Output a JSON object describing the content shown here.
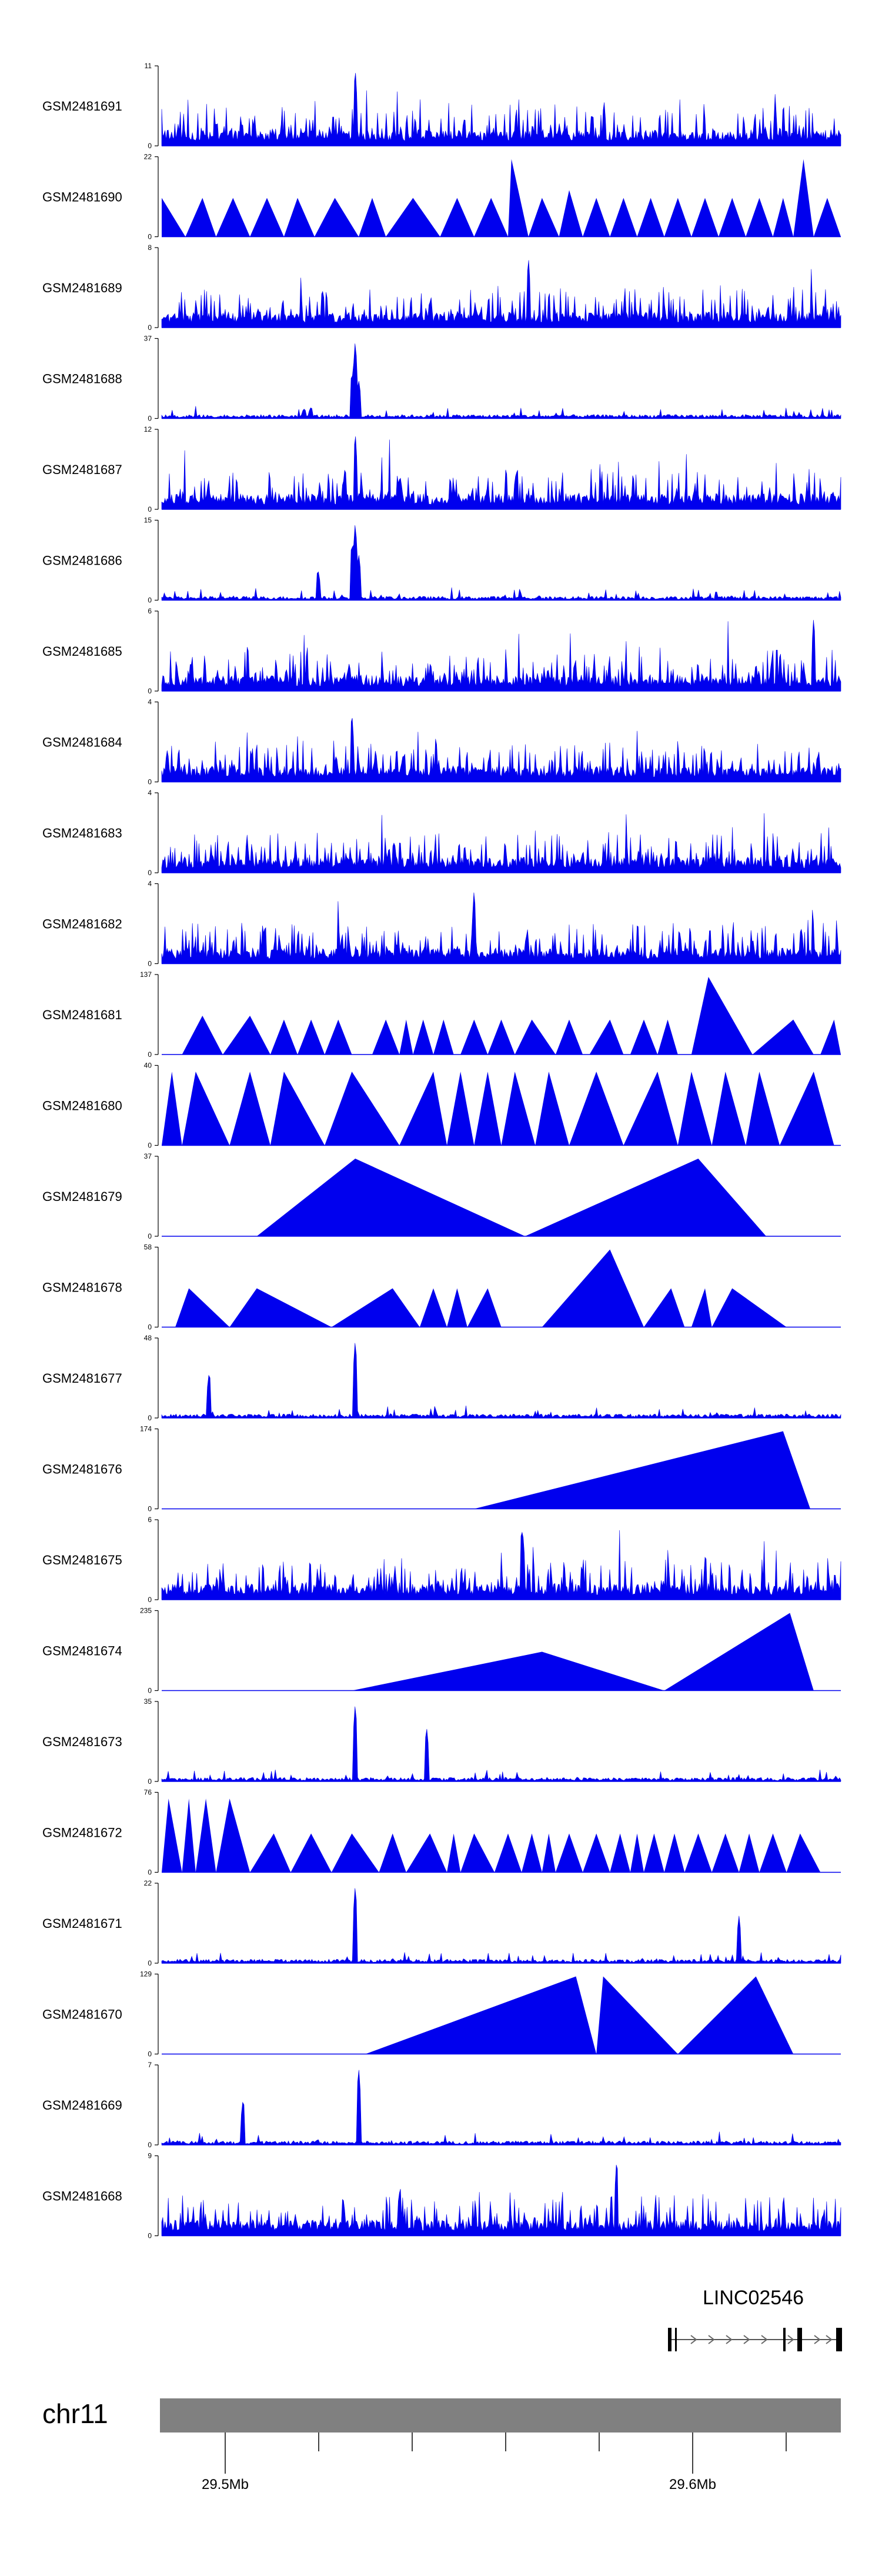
{
  "chart_data": {
    "type": "area",
    "description_title": "",
    "tracks": [
      {
        "name": "GSM2481691",
        "ymax": "11",
        "shape": "dense",
        "seed": 1,
        "spikes": [
          [
            0.285,
            1.0
          ]
        ]
      },
      {
        "name": "GSM2481690",
        "ymax": "22",
        "shape": "tri",
        "peaks": [
          [
            0.0,
            0.035,
            0.0,
            0.5
          ],
          [
            0.035,
            0.08,
            0.06,
            0.5
          ],
          [
            0.08,
            0.13,
            0.105,
            0.5
          ],
          [
            0.13,
            0.18,
            0.155,
            0.5
          ],
          [
            0.18,
            0.225,
            0.2,
            0.5
          ],
          [
            0.225,
            0.29,
            0.255,
            0.5
          ],
          [
            0.29,
            0.33,
            0.31,
            0.5
          ],
          [
            0.33,
            0.41,
            0.37,
            0.5
          ],
          [
            0.41,
            0.46,
            0.435,
            0.5
          ],
          [
            0.46,
            0.51,
            0.485,
            0.5
          ],
          [
            0.51,
            0.54,
            0.515,
            1.0
          ],
          [
            0.54,
            0.585,
            0.56,
            0.5
          ],
          [
            0.585,
            0.62,
            0.6,
            0.6
          ],
          [
            0.62,
            0.66,
            0.64,
            0.5
          ],
          [
            0.66,
            0.7,
            0.68,
            0.5
          ],
          [
            0.7,
            0.74,
            0.72,
            0.5
          ],
          [
            0.74,
            0.78,
            0.76,
            0.5
          ],
          [
            0.78,
            0.82,
            0.8,
            0.5
          ],
          [
            0.82,
            0.86,
            0.84,
            0.5
          ],
          [
            0.86,
            0.9,
            0.88,
            0.5
          ],
          [
            0.9,
            0.93,
            0.915,
            0.5
          ],
          [
            0.93,
            0.96,
            0.945,
            1.0
          ],
          [
            0.96,
            1.0,
            0.98,
            0.5
          ]
        ]
      },
      {
        "name": "GSM2481689",
        "ymax": "8",
        "shape": "dense",
        "seed": 3,
        "spikes": [
          [
            0.54,
            0.9
          ]
        ]
      },
      {
        "name": "GSM2481688",
        "ymax": "37",
        "shape": "sparse",
        "seed": 4,
        "spikes": [
          [
            0.285,
            1.0
          ],
          [
            0.28,
            0.6
          ],
          [
            0.29,
            0.5
          ],
          [
            0.22,
            0.15
          ]
        ]
      },
      {
        "name": "GSM2481687",
        "ymax": "12",
        "shape": "dense",
        "seed": 5,
        "spikes": [
          [
            0.285,
            1.0
          ],
          [
            0.27,
            0.55
          ]
        ]
      },
      {
        "name": "GSM2481686",
        "ymax": "15",
        "shape": "sparse",
        "seed": 6,
        "spikes": [
          [
            0.285,
            1.0
          ],
          [
            0.28,
            0.75
          ],
          [
            0.29,
            0.6
          ],
          [
            0.23,
            0.4
          ]
        ]
      },
      {
        "name": "GSM2481685",
        "ymax": "6",
        "shape": "dense",
        "seed": 7,
        "spikes": [
          [
            0.96,
            0.95
          ]
        ]
      },
      {
        "name": "GSM2481684",
        "ymax": "4",
        "shape": "dense",
        "seed": 8,
        "spikes": [
          [
            0.28,
            0.9
          ]
        ]
      },
      {
        "name": "GSM2481683",
        "ymax": "4",
        "shape": "dense",
        "seed": 9,
        "spikes": []
      },
      {
        "name": "GSM2481682",
        "ymax": "4",
        "shape": "dense",
        "seed": 10,
        "spikes": [
          [
            0.46,
            0.95
          ]
        ]
      },
      {
        "name": "GSM2481681",
        "ymax": "137",
        "shape": "tri",
        "peaks": [
          [
            0.03,
            0.09,
            0.06,
            0.5
          ],
          [
            0.09,
            0.16,
            0.13,
            0.5
          ],
          [
            0.16,
            0.2,
            0.18,
            0.45
          ],
          [
            0.2,
            0.24,
            0.22,
            0.45
          ],
          [
            0.24,
            0.28,
            0.26,
            0.45
          ],
          [
            0.31,
            0.35,
            0.33,
            0.45
          ],
          [
            0.35,
            0.37,
            0.36,
            0.45
          ],
          [
            0.37,
            0.4,
            0.385,
            0.45
          ],
          [
            0.4,
            0.43,
            0.415,
            0.45
          ],
          [
            0.44,
            0.48,
            0.46,
            0.45
          ],
          [
            0.48,
            0.52,
            0.5,
            0.45
          ],
          [
            0.52,
            0.58,
            0.545,
            0.45
          ],
          [
            0.58,
            0.62,
            0.6,
            0.45
          ],
          [
            0.63,
            0.68,
            0.66,
            0.45
          ],
          [
            0.69,
            0.73,
            0.71,
            0.45
          ],
          [
            0.73,
            0.76,
            0.745,
            0.45
          ],
          [
            0.78,
            0.87,
            0.805,
            1.0
          ],
          [
            0.87,
            0.96,
            0.93,
            0.45
          ],
          [
            0.97,
            1.0,
            0.99,
            0.45
          ]
        ]
      },
      {
        "name": "GSM2481680",
        "ymax": "40",
        "shape": "tri",
        "peaks": [
          [
            0.0,
            0.03,
            0.015,
            0.95
          ],
          [
            0.03,
            0.1,
            0.05,
            0.95
          ],
          [
            0.1,
            0.16,
            0.13,
            0.95
          ],
          [
            0.16,
            0.24,
            0.18,
            0.95
          ],
          [
            0.24,
            0.35,
            0.28,
            0.95
          ],
          [
            0.35,
            0.42,
            0.4,
            0.95
          ],
          [
            0.42,
            0.46,
            0.44,
            0.95
          ],
          [
            0.46,
            0.5,
            0.48,
            0.95
          ],
          [
            0.5,
            0.55,
            0.52,
            0.95
          ],
          [
            0.55,
            0.6,
            0.57,
            0.95
          ],
          [
            0.6,
            0.68,
            0.64,
            0.95
          ],
          [
            0.68,
            0.76,
            0.73,
            0.95
          ],
          [
            0.76,
            0.81,
            0.78,
            0.95
          ],
          [
            0.81,
            0.86,
            0.83,
            0.95
          ],
          [
            0.86,
            0.91,
            0.88,
            0.95
          ],
          [
            0.91,
            0.99,
            0.96,
            0.95
          ]
        ]
      },
      {
        "name": "GSM2481679",
        "ymax": "37",
        "shape": "tri",
        "peaks": [
          [
            0.14,
            0.535,
            0.285,
            1.0
          ],
          [
            0.535,
            0.89,
            0.79,
            1.0
          ]
        ]
      },
      {
        "name": "GSM2481678",
        "ymax": "58",
        "shape": "tri",
        "peaks": [
          [
            0.02,
            0.1,
            0.04,
            0.5
          ],
          [
            0.1,
            0.25,
            0.14,
            0.5
          ],
          [
            0.25,
            0.38,
            0.34,
            0.5
          ],
          [
            0.38,
            0.42,
            0.4,
            0.5
          ],
          [
            0.42,
            0.45,
            0.435,
            0.5
          ],
          [
            0.45,
            0.5,
            0.48,
            0.5
          ],
          [
            0.56,
            0.71,
            0.66,
            1.0
          ],
          [
            0.71,
            0.77,
            0.75,
            0.5
          ],
          [
            0.78,
            0.81,
            0.8,
            0.5
          ],
          [
            0.81,
            0.92,
            0.84,
            0.5
          ]
        ]
      },
      {
        "name": "GSM2481677",
        "ymax": "48",
        "shape": "sparse",
        "seed": 15,
        "spikes": [
          [
            0.07,
            0.6
          ],
          [
            0.285,
            1.0
          ]
        ]
      },
      {
        "name": "GSM2481676",
        "ymax": "174",
        "shape": "tri",
        "peaks": [
          [
            0.46,
            0.955,
            0.915,
            1.0
          ]
        ]
      },
      {
        "name": "GSM2481675",
        "ymax": "6",
        "shape": "dense",
        "seed": 17,
        "spikes": [
          [
            0.53,
            0.95
          ]
        ]
      },
      {
        "name": "GSM2481674",
        "ymax": "235",
        "shape": "tri",
        "peaks": [
          [
            0.28,
            0.74,
            0.56,
            0.5
          ],
          [
            0.74,
            0.96,
            0.925,
            1.0
          ]
        ]
      },
      {
        "name": "GSM2481673",
        "ymax": "35",
        "shape": "sparse",
        "seed": 19,
        "spikes": [
          [
            0.285,
            1.0
          ],
          [
            0.39,
            0.7
          ]
        ]
      },
      {
        "name": "GSM2481672",
        "ymax": "76",
        "shape": "tri",
        "peaks": [
          [
            0.0,
            0.03,
            0.01,
            0.95
          ],
          [
            0.03,
            0.05,
            0.04,
            0.95
          ],
          [
            0.05,
            0.08,
            0.065,
            0.95
          ],
          [
            0.08,
            0.13,
            0.1,
            0.95
          ],
          [
            0.13,
            0.19,
            0.165,
            0.5
          ],
          [
            0.19,
            0.25,
            0.22,
            0.5
          ],
          [
            0.25,
            0.32,
            0.28,
            0.5
          ],
          [
            0.32,
            0.36,
            0.34,
            0.5
          ],
          [
            0.36,
            0.42,
            0.395,
            0.5
          ],
          [
            0.42,
            0.44,
            0.43,
            0.5
          ],
          [
            0.44,
            0.49,
            0.46,
            0.5
          ],
          [
            0.49,
            0.53,
            0.51,
            0.5
          ],
          [
            0.53,
            0.56,
            0.545,
            0.5
          ],
          [
            0.56,
            0.58,
            0.57,
            0.5
          ],
          [
            0.58,
            0.62,
            0.6,
            0.5
          ],
          [
            0.62,
            0.66,
            0.64,
            0.5
          ],
          [
            0.66,
            0.69,
            0.675,
            0.5
          ],
          [
            0.69,
            0.71,
            0.7,
            0.5
          ],
          [
            0.71,
            0.74,
            0.725,
            0.5
          ],
          [
            0.74,
            0.77,
            0.755,
            0.5
          ],
          [
            0.77,
            0.81,
            0.79,
            0.5
          ],
          [
            0.81,
            0.85,
            0.83,
            0.5
          ],
          [
            0.85,
            0.88,
            0.865,
            0.5
          ],
          [
            0.88,
            0.92,
            0.9,
            0.5
          ],
          [
            0.92,
            0.97,
            0.94,
            0.5
          ]
        ]
      },
      {
        "name": "GSM2481671",
        "ymax": "22",
        "shape": "sparse",
        "seed": 21,
        "spikes": [
          [
            0.285,
            1.0
          ],
          [
            0.85,
            0.6
          ]
        ]
      },
      {
        "name": "GSM2481670",
        "ymax": "129",
        "shape": "tri",
        "peaks": [
          [
            0.3,
            0.64,
            0.61,
            1.0
          ],
          [
            0.64,
            0.76,
            0.65,
            1.0
          ],
          [
            0.76,
            0.93,
            0.875,
            1.0
          ]
        ]
      },
      {
        "name": "GSM2481669",
        "ymax": "7",
        "shape": "sparse",
        "seed": 23,
        "spikes": [
          [
            0.29,
            1.0
          ],
          [
            0.12,
            0.6
          ]
        ]
      },
      {
        "name": "GSM2481668",
        "ymax": "9",
        "shape": "dense",
        "seed": 24,
        "spikes": [
          [
            0.67,
            1.0
          ]
        ]
      }
    ],
    "gene": {
      "name": "LINC02546"
    },
    "ideogram": {
      "chromosome": "chr11",
      "ticks": [
        "29.5Mb",
        "29.6Mb"
      ]
    },
    "colors": {
      "signal": "#0000ee",
      "ideogram": "#808080",
      "axis": "#000000"
    }
  }
}
